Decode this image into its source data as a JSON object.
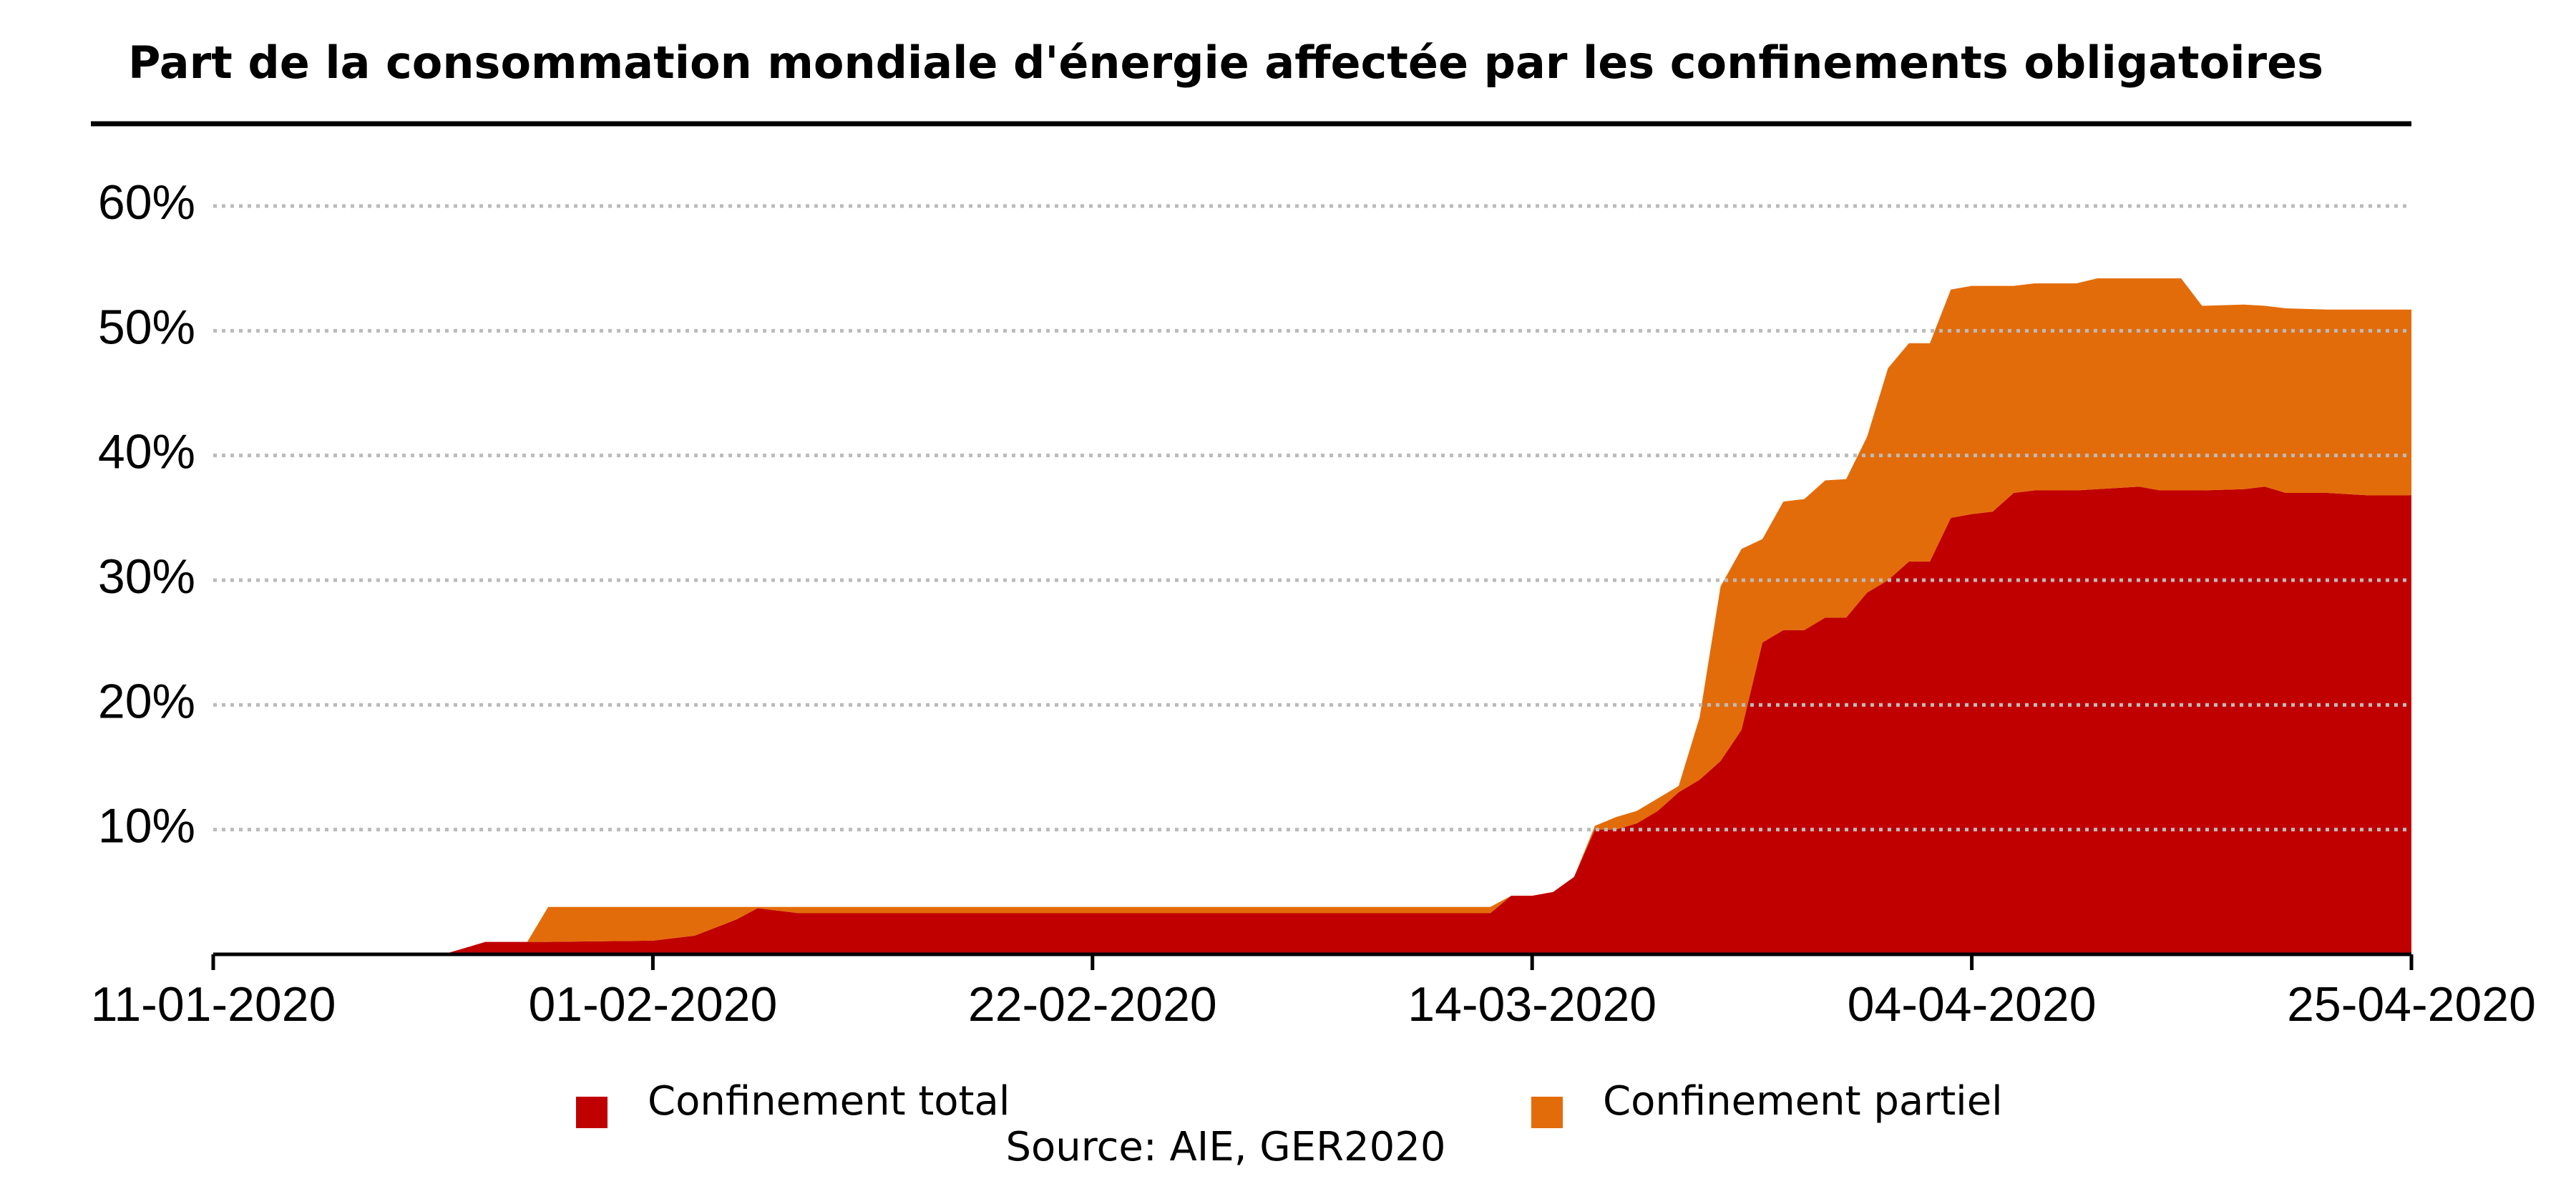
{
  "chart_data": {
    "type": "stacked-area",
    "title": "Part de la consommation mondiale d'énergie affectée par les confinements obligatoires",
    "source": "Source: AIE, GER2020",
    "x": [
      "11-01-2020",
      "22-01-2020",
      "24-01-2020",
      "26-01-2020",
      "27-01-2020",
      "01-02-2020",
      "03-02-2020",
      "05-02-2020",
      "06-02-2020",
      "07-02-2020",
      "08-02-2020",
      "12-03-2020",
      "13-03-2020",
      "14-03-2020",
      "15-03-2020",
      "16-03-2020",
      "17-03-2020",
      "18-03-2020",
      "19-03-2020",
      "20-03-2020",
      "21-03-2020",
      "22-03-2020",
      "23-03-2020",
      "24-03-2020",
      "25-03-2020",
      "26-03-2020",
      "27-03-2020",
      "28-03-2020",
      "29-03-2020",
      "30-03-2020",
      "31-03-2020",
      "01-04-2020",
      "02-04-2020",
      "03-04-2020",
      "04-04-2020",
      "05-04-2020",
      "06-04-2020",
      "07-04-2020",
      "09-04-2020",
      "10-04-2020",
      "12-04-2020",
      "13-04-2020",
      "14-04-2020",
      "15-04-2020",
      "17-04-2020",
      "18-04-2020",
      "19-04-2020",
      "21-04-2020",
      "23-04-2020",
      "25-04-2020"
    ],
    "series": [
      {
        "name": "Confinement total",
        "color": "#c00000",
        "values": [
          0,
          0,
          1,
          1,
          1,
          1.1,
          1.5,
          2.8,
          3.7,
          3.5,
          3.3,
          3.3,
          4.7,
          4.7,
          5,
          6.2,
          10,
          10,
          10.5,
          11.5,
          13,
          14,
          15.5,
          18,
          25,
          26,
          26,
          27,
          27,
          29,
          30,
          31.5,
          31.5,
          35,
          35.3,
          35.5,
          37,
          37.2,
          37.2,
          37.3,
          37.5,
          37.2,
          37.2,
          37.2,
          37.3,
          37.5,
          37,
          37,
          36.8,
          36.8
        ]
      },
      {
        "name": "Confinement partiel",
        "color": "#e36c0a",
        "values": [
          0,
          0,
          0,
          0,
          2.8,
          2.7,
          2.3,
          1,
          0.1,
          0.3,
          0.5,
          0.5,
          0,
          0,
          0,
          0,
          0.3,
          1,
          1,
          1,
          0.5,
          5,
          14,
          14.5,
          8.3,
          10.3,
          10.5,
          11,
          11.1,
          12.5,
          17,
          17.5,
          17.5,
          18.3,
          18.3,
          18.1,
          16.6,
          16.6,
          16.6,
          16.9,
          16.7,
          17,
          17,
          14.8,
          14.8,
          14.5,
          14.8,
          14.7,
          14.9,
          14.9
        ]
      }
    ],
    "xlim": [
      "11-01-2020",
      "25-04-2020"
    ],
    "xticks": [
      "11-01-2020",
      "01-02-2020",
      "22-02-2020",
      "14-03-2020",
      "04-04-2020",
      "25-04-2020"
    ],
    "ylim": [
      0,
      60
    ],
    "yticks": [
      {
        "value": 10,
        "label": "10%"
      },
      {
        "value": 20,
        "label": "20%"
      },
      {
        "value": 30,
        "label": "30%"
      },
      {
        "value": 40,
        "label": "40%"
      },
      {
        "value": 50,
        "label": "50%"
      },
      {
        "value": 60,
        "label": "60%"
      }
    ],
    "grid": true,
    "legend": "bottom"
  }
}
